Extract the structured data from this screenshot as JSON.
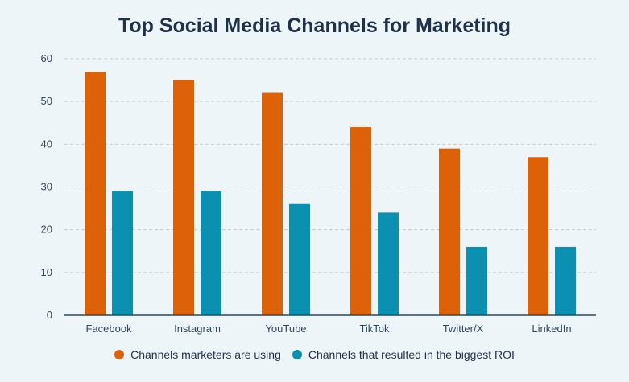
{
  "chart_data": {
    "type": "bar",
    "title": "Top Social Media Channels for Marketing",
    "categories": [
      "Facebook",
      "Instagram",
      "YouTube",
      "TikTok",
      "Twitter/X",
      "LinkedIn"
    ],
    "series": [
      {
        "name": "Channels marketers are using",
        "color": "#dc6109",
        "values": [
          57,
          55,
          52,
          44,
          39,
          37
        ]
      },
      {
        "name": "Channels that resulted in the biggest ROI",
        "color": "#0c90b2",
        "values": [
          29,
          29,
          26,
          24,
          16,
          16
        ]
      }
    ],
    "ylim": [
      0,
      60
    ],
    "yticks": [
      0,
      10,
      20,
      30,
      40,
      50,
      60
    ],
    "grid": true,
    "legend_position": "bottom"
  }
}
